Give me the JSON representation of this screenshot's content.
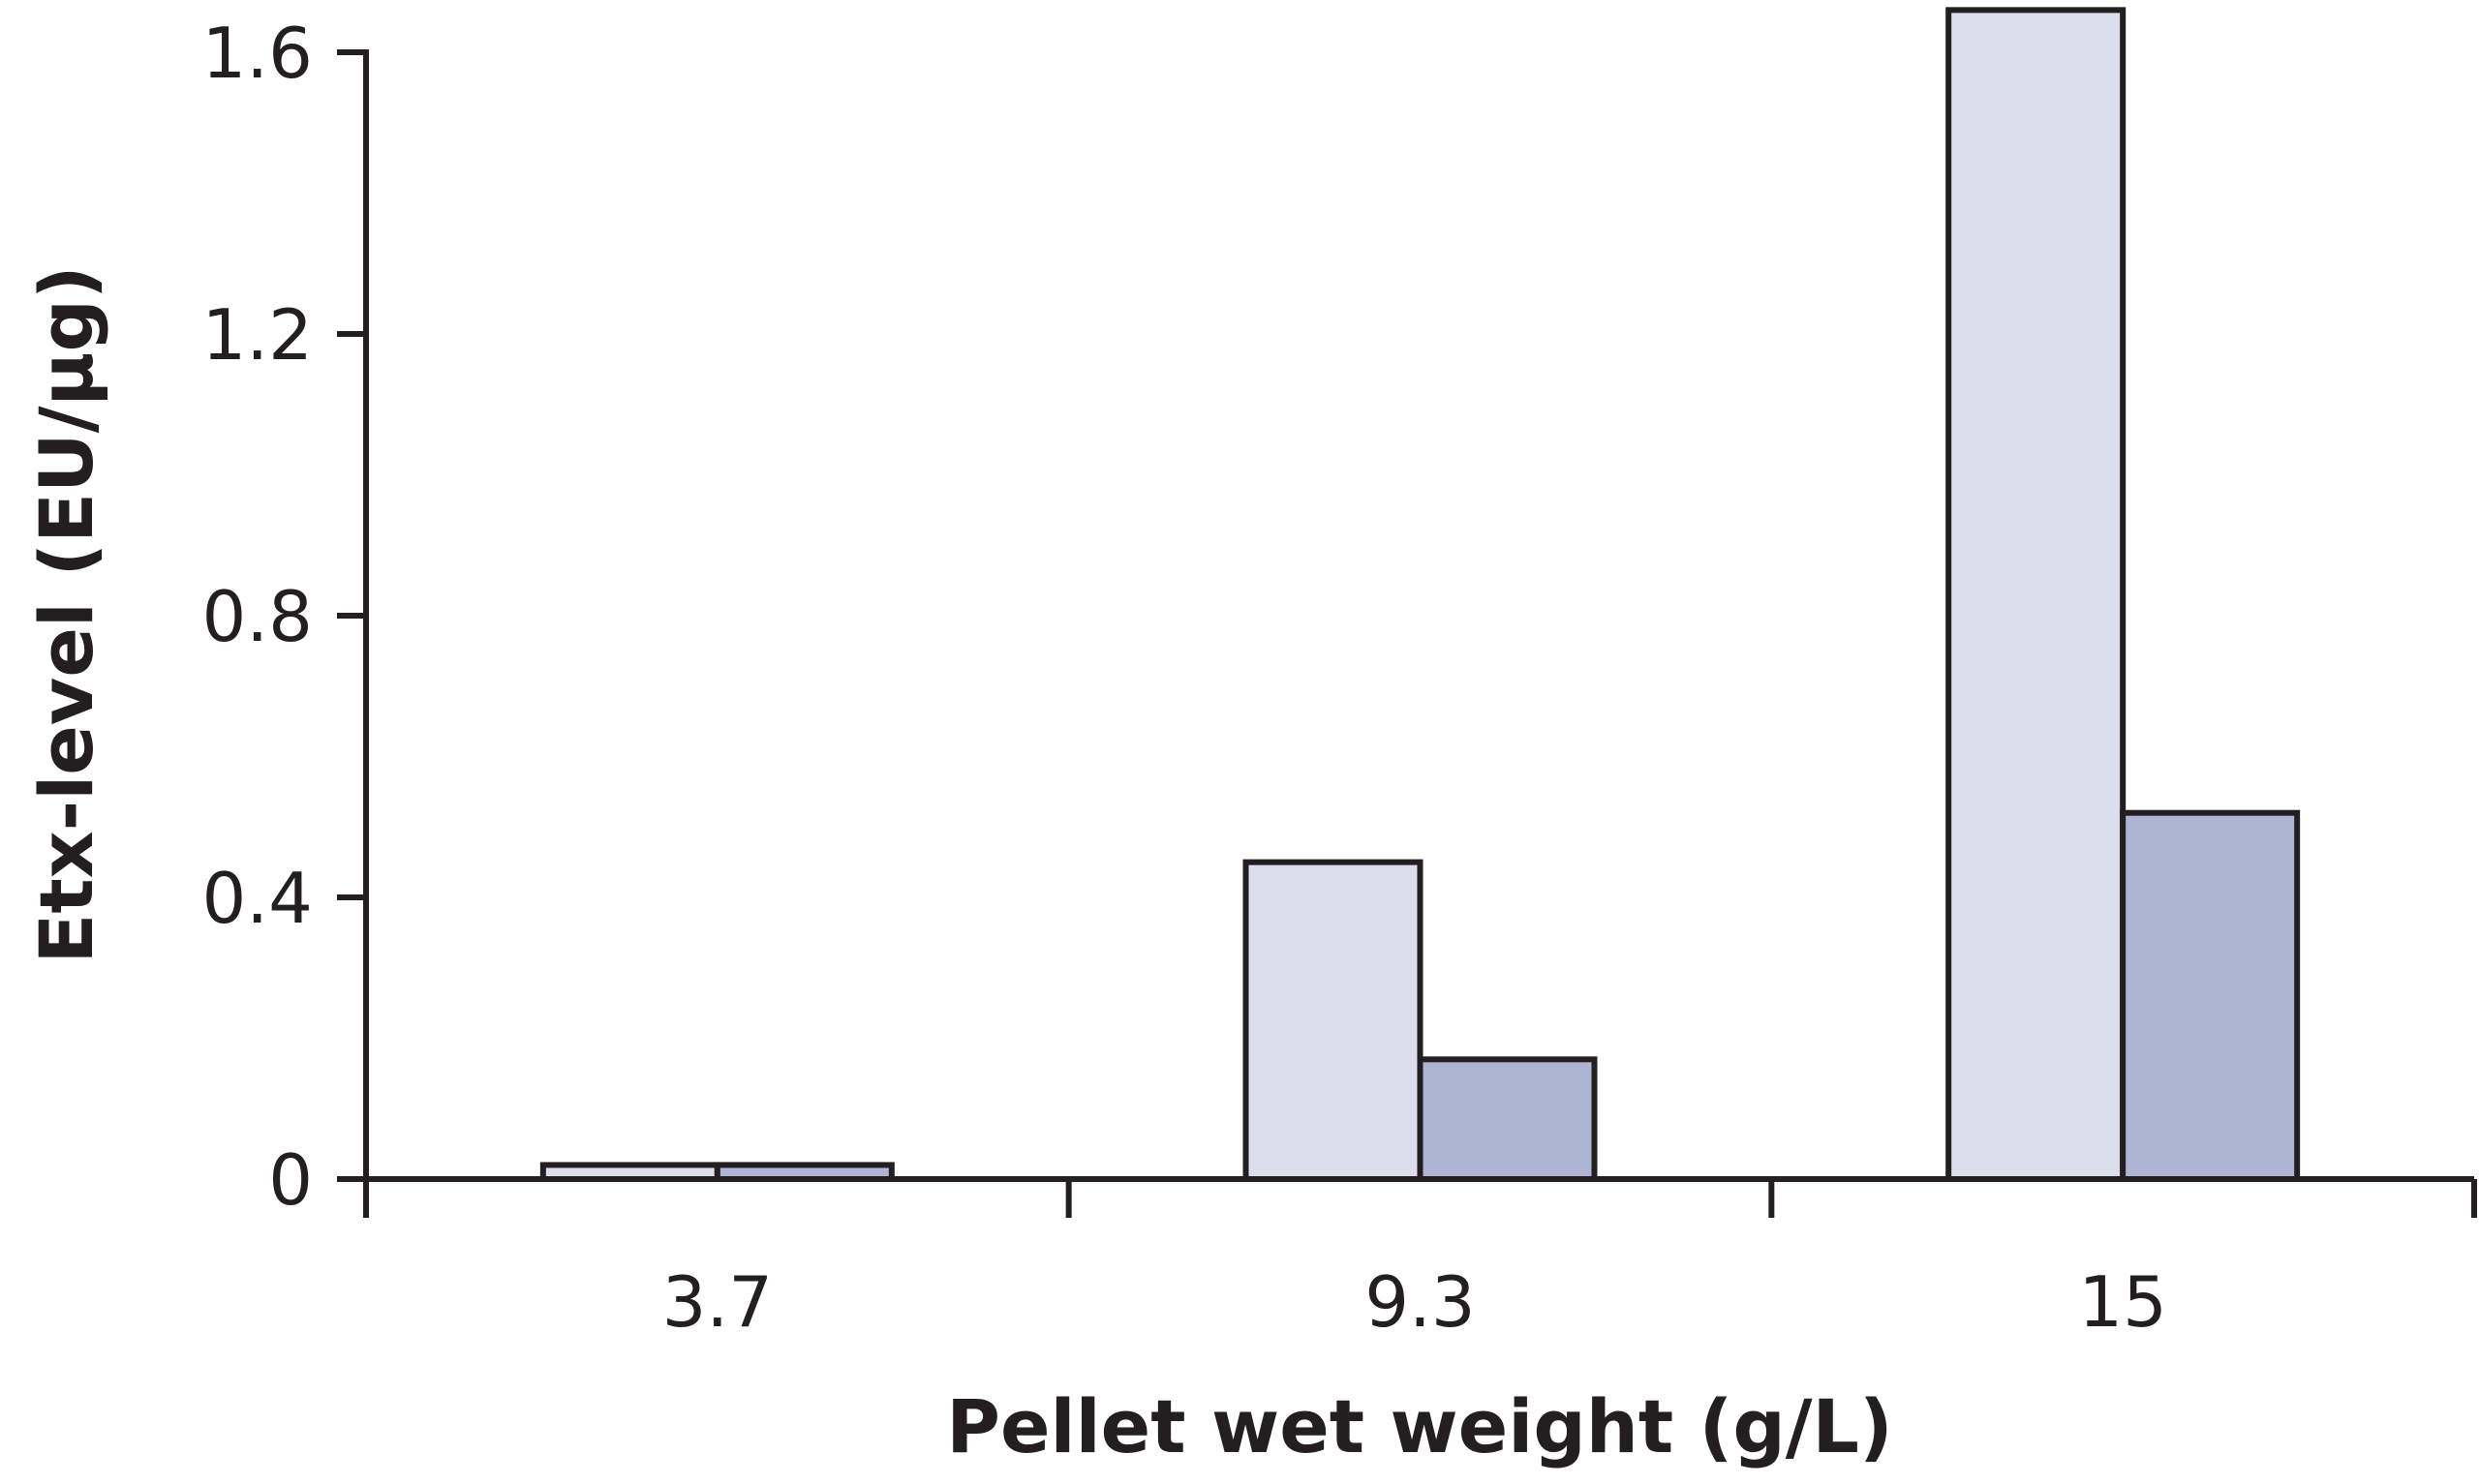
{
  "chart_data": {
    "type": "bar",
    "title": "",
    "xlabel": "Pellet wet weight (g/L)",
    "ylabel": "Etx-level (EU/µg)",
    "categories": [
      "3.7",
      "9.3",
      "15"
    ],
    "series": [
      {
        "values": [
          0.02,
          0.45,
          1.66
        ],
        "color": "#dcdeec"
      },
      {
        "values": [
          0.02,
          0.17,
          0.52
        ],
        "color": "#aeb4d4"
      }
    ],
    "ylim": [
      0,
      1.6
    ],
    "yticks": [
      0,
      0.4,
      0.8,
      1.2,
      1.6
    ],
    "ytick_labels": [
      "0",
      "0.4",
      "0.8",
      "1.2",
      "1.6"
    ],
    "grid": false,
    "legend": "none"
  }
}
